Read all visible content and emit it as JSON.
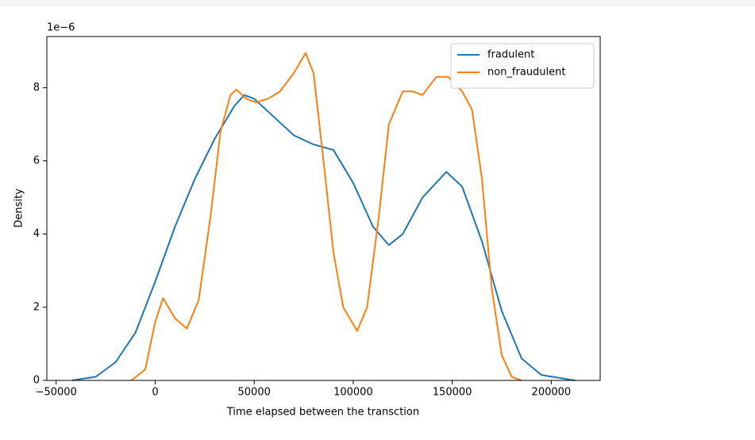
{
  "chart_data": {
    "type": "line",
    "xlabel": "Time elapsed between the transction",
    "ylabel": "Density",
    "y_offset_label": "1e−6",
    "xlim": [
      -54700,
      224700
    ],
    "ylim": [
      0,
      9.4
    ],
    "xticks": [
      {
        "value": -50000,
        "label": "−50000"
      },
      0,
      50000,
      100000,
      150000,
      200000
    ],
    "yticks": [
      0,
      2,
      4,
      6,
      8
    ],
    "legend": "upper right",
    "series": [
      {
        "name": "fradulent",
        "color": "#1f77b4",
        "x": [
          -42000,
          -30000,
          -20000,
          -10000,
          0,
          10000,
          20000,
          30000,
          40000,
          45000,
          50000,
          60000,
          70000,
          80000,
          90000,
          100000,
          110000,
          118000,
          125000,
          135000,
          147000,
          155000,
          165000,
          175000,
          185000,
          195000,
          212000
        ],
        "values": [
          0,
          0.1,
          0.5,
          1.3,
          2.7,
          4.2,
          5.5,
          6.6,
          7.5,
          7.8,
          7.7,
          7.2,
          6.7,
          6.45,
          6.3,
          5.4,
          4.2,
          3.7,
          4.0,
          5.0,
          5.7,
          5.3,
          3.8,
          1.9,
          0.6,
          0.15,
          0
        ]
      },
      {
        "name": "non_fraudulent",
        "color": "#ff7f0e",
        "x": [
          -12000,
          -5000,
          0,
          4000,
          10000,
          16000,
          22000,
          28000,
          33000,
          38000,
          41000,
          46000,
          51000,
          57000,
          63000,
          70000,
          76000,
          80000,
          85000,
          90000,
          95000,
          102000,
          107000,
          113000,
          118000,
          125000,
          130000,
          135000,
          142000,
          148000,
          155000,
          160000,
          165000,
          170000,
          175000,
          180000,
          185000
        ],
        "values": [
          0,
          0.3,
          1.6,
          2.25,
          1.7,
          1.42,
          2.2,
          4.5,
          6.8,
          7.8,
          7.95,
          7.7,
          7.6,
          7.7,
          7.9,
          8.4,
          8.95,
          8.4,
          6.0,
          3.5,
          2.0,
          1.35,
          2.0,
          4.5,
          7.0,
          7.9,
          7.9,
          7.8,
          8.3,
          8.3,
          7.9,
          7.4,
          5.5,
          2.5,
          0.7,
          0.1,
          0
        ]
      }
    ]
  }
}
